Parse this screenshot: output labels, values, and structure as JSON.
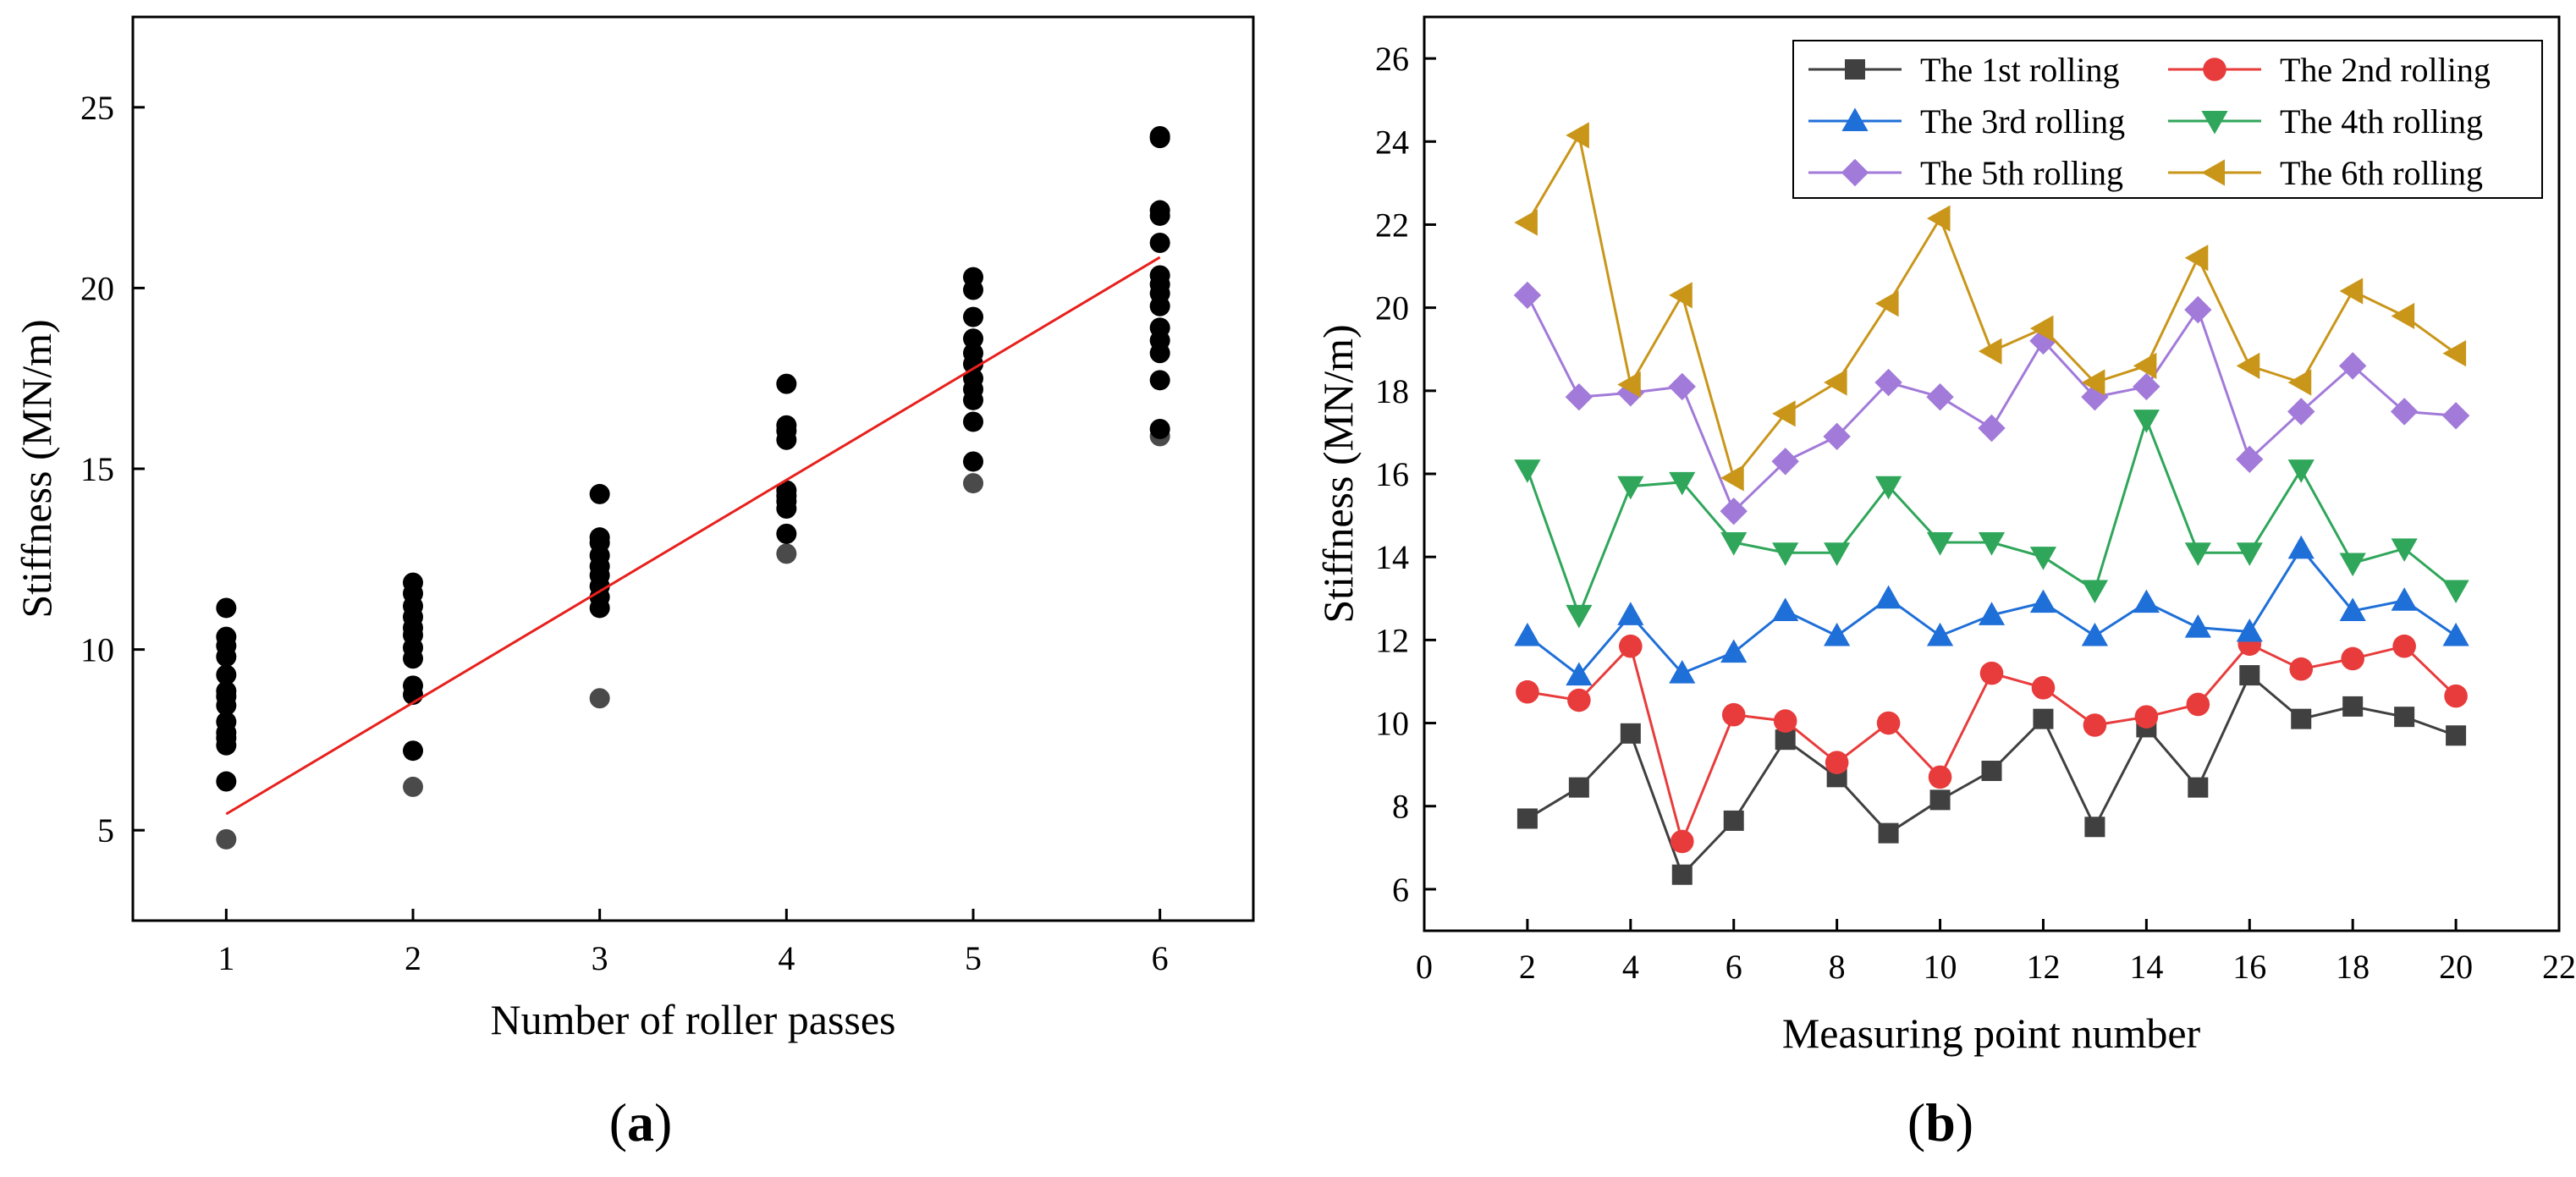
{
  "colors": {
    "scatter_point": "#000000",
    "scatter_low_point": "#4a4a4a",
    "fit_line": "#e8201c",
    "series": [
      "#404040",
      "#e83c3c",
      "#1f6fd8",
      "#2fa65a",
      "#a27ad9",
      "#c9961a"
    ]
  },
  "chart_data": [
    {
      "type": "scatter",
      "panel_label": "a",
      "xlabel": "Number of roller passes",
      "ylabel": "Stiffness (MN/m)",
      "xlim": [
        0.5,
        6.5
      ],
      "ylim": [
        2.5,
        27.5
      ],
      "xticks": [
        1,
        2,
        3,
        4,
        5,
        6
      ],
      "yticks": [
        5,
        10,
        15,
        20,
        25
      ],
      "points": [
        {
          "x": 1,
          "y": [
            4.75,
            6.35,
            7.35,
            7.55,
            7.7,
            8.0,
            8.45,
            8.7,
            8.85,
            9.3,
            9.8,
            10.1,
            10.35,
            11.15
          ]
        },
        {
          "x": 2,
          "y": [
            6.2,
            7.2,
            8.75,
            9.0,
            9.75,
            10.05,
            10.4,
            10.6,
            10.9,
            11.2,
            11.55,
            11.85
          ]
        },
        {
          "x": 3,
          "y": [
            8.65,
            11.15,
            11.45,
            11.75,
            12.05,
            12.3,
            12.6,
            12.95,
            13.1,
            14.3
          ]
        },
        {
          "x": 4,
          "y": [
            12.65,
            13.2,
            13.9,
            14.1,
            14.25,
            14.4,
            15.8,
            16.05,
            16.2,
            17.35
          ]
        },
        {
          "x": 5,
          "y": [
            14.6,
            15.2,
            16.3,
            16.9,
            17.2,
            17.5,
            17.9,
            18.2,
            18.6,
            19.2,
            19.95,
            20.3
          ]
        },
        {
          "x": 6,
          "y": [
            15.9,
            16.1,
            17.45,
            18.2,
            18.55,
            18.9,
            19.5,
            19.85,
            20.1,
            20.35,
            21.25,
            22.0,
            22.15,
            24.15,
            24.2
          ]
        }
      ],
      "fit_line": {
        "x": [
          1,
          6
        ],
        "y": [
          5.45,
          20.85
        ]
      }
    },
    {
      "type": "line",
      "panel_label": "b",
      "xlabel": "Measuring point number",
      "ylabel": "Stiffness (MN/m)",
      "xlim": [
        0,
        22
      ],
      "ylim": [
        5,
        27
      ],
      "xticks": [
        0,
        2,
        4,
        6,
        8,
        10,
        12,
        14,
        16,
        18,
        20,
        22
      ],
      "yticks": [
        6,
        8,
        10,
        12,
        14,
        16,
        18,
        20,
        22,
        24,
        26
      ],
      "x": [
        2,
        3,
        4,
        5,
        6,
        7,
        8,
        9,
        10,
        11,
        12,
        13,
        14,
        15,
        16,
        17,
        18,
        19,
        20
      ],
      "series": [
        {
          "name": "The 1st rolling",
          "marker": "square",
          "values": [
            7.7,
            8.45,
            9.75,
            6.35,
            7.65,
            9.6,
            8.7,
            7.35,
            8.15,
            8.85,
            10.1,
            7.5,
            9.9,
            8.45,
            11.15,
            10.1,
            10.4,
            10.15,
            9.7
          ]
        },
        {
          "name": "The 2nd rolling",
          "marker": "circle",
          "values": [
            10.75,
            10.55,
            11.85,
            7.15,
            10.2,
            10.05,
            9.05,
            10.0,
            8.7,
            11.2,
            10.85,
            9.95,
            10.15,
            10.45,
            11.9,
            11.3,
            11.55,
            11.85,
            10.65
          ]
        },
        {
          "name": "The 3rd rolling",
          "marker": "triangle-up",
          "values": [
            12.1,
            11.15,
            12.6,
            11.2,
            11.7,
            12.7,
            12.1,
            13.0,
            12.1,
            12.6,
            12.9,
            12.1,
            12.9,
            12.3,
            12.2,
            14.2,
            12.7,
            12.95,
            12.1
          ]
        },
        {
          "name": "The 4th rolling",
          "marker": "triangle-down",
          "values": [
            16.1,
            12.6,
            15.7,
            15.8,
            14.35,
            14.1,
            14.1,
            15.7,
            14.35,
            14.35,
            14.0,
            13.2,
            17.3,
            14.1,
            14.1,
            16.1,
            13.85,
            14.2,
            13.2
          ]
        },
        {
          "name": "The 5th rolling",
          "marker": "diamond",
          "values": [
            20.3,
            17.85,
            17.95,
            18.1,
            15.1,
            16.3,
            16.9,
            18.2,
            17.85,
            17.1,
            19.2,
            17.85,
            18.1,
            19.95,
            16.35,
            17.5,
            18.6,
            17.5,
            17.4
          ]
        },
        {
          "name": "The 6th rolling",
          "marker": "triangle-left",
          "values": [
            22.05,
            24.15,
            18.15,
            20.3,
            15.9,
            17.45,
            18.2,
            20.1,
            22.15,
            18.95,
            19.5,
            18.2,
            18.6,
            21.2,
            18.6,
            18.2,
            20.4,
            19.8,
            18.9
          ]
        }
      ]
    }
  ]
}
